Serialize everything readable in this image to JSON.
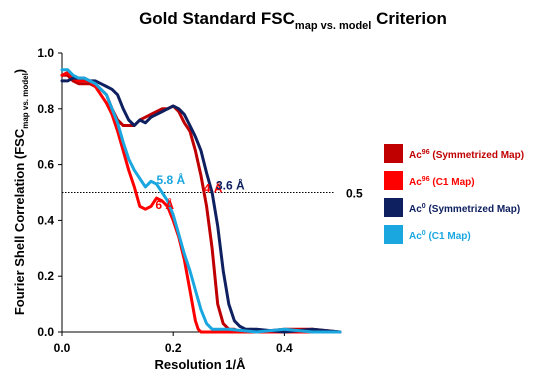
{
  "chart_data": {
    "type": "line",
    "title": {
      "prefix": "Gold Standard FSC",
      "subscript": "map vs. model",
      "suffix": " Criterion"
    },
    "xlabel": "Resolution 1/Å",
    "ylabel": {
      "prefix": "Fourier Shell Correlation (FSC",
      "subscript": "map vs. model",
      "suffix": ")"
    },
    "xlim": [
      0,
      0.5
    ],
    "ylim": [
      0,
      1.0
    ],
    "xticks": [
      "0.0",
      "0.2",
      "0.4"
    ],
    "xtick_values": [
      0.0,
      0.2,
      0.4
    ],
    "yticks": [
      "0.0",
      "0.2",
      "0.4",
      "0.6",
      "0.8",
      "1.0"
    ],
    "ytick_values": [
      0.0,
      0.2,
      0.4,
      0.6,
      0.8,
      1.0
    ],
    "threshold": {
      "value": 0.5,
      "label": "0.5"
    },
    "series": [
      {
        "name": "Ac<sup>96</sup> (Symmetrized Map)",
        "legend": {
          "base": "Ac",
          "sup": "96",
          "rest": " (Symmetrized Map)"
        },
        "color": "#c00000",
        "x": [
          0.0,
          0.01,
          0.02,
          0.03,
          0.04,
          0.05,
          0.06,
          0.07,
          0.08,
          0.09,
          0.1,
          0.11,
          0.12,
          0.13,
          0.14,
          0.15,
          0.16,
          0.17,
          0.18,
          0.19,
          0.2,
          0.21,
          0.22,
          0.23,
          0.24,
          0.25,
          0.26,
          0.27,
          0.28,
          0.29,
          0.3,
          0.31,
          0.32,
          0.33,
          0.34,
          0.35,
          0.4,
          0.45,
          0.5
        ],
        "y": [
          0.92,
          0.92,
          0.9,
          0.89,
          0.89,
          0.89,
          0.88,
          0.87,
          0.85,
          0.8,
          0.76,
          0.74,
          0.74,
          0.74,
          0.76,
          0.77,
          0.78,
          0.79,
          0.8,
          0.8,
          0.81,
          0.79,
          0.75,
          0.72,
          0.65,
          0.56,
          0.45,
          0.3,
          0.1,
          0.03,
          0.01,
          0.01,
          0.0,
          0.0,
          0.01,
          0.0,
          0.01,
          0.01,
          0.0
        ]
      },
      {
        "name": "Ac<sup>96</sup> (C1 Map)",
        "legend": {
          "base": "Ac",
          "sup": "96",
          "rest": " (C1 Map)"
        },
        "color": "#ff0000",
        "x": [
          0.0,
          0.01,
          0.02,
          0.03,
          0.04,
          0.05,
          0.06,
          0.07,
          0.08,
          0.09,
          0.1,
          0.11,
          0.12,
          0.13,
          0.14,
          0.15,
          0.16,
          0.17,
          0.18,
          0.19,
          0.2,
          0.21,
          0.22,
          0.23,
          0.24,
          0.245,
          0.25,
          0.3,
          0.35,
          0.4,
          0.45,
          0.5
        ],
        "y": [
          0.92,
          0.93,
          0.91,
          0.9,
          0.9,
          0.9,
          0.88,
          0.85,
          0.82,
          0.78,
          0.72,
          0.65,
          0.58,
          0.52,
          0.45,
          0.44,
          0.45,
          0.48,
          0.47,
          0.45,
          0.4,
          0.34,
          0.26,
          0.15,
          0.04,
          0.01,
          0.0,
          0.0,
          0.0,
          0.0,
          0.0,
          0.0
        ]
      },
      {
        "name": "Ac<sup>0</sup> (Symmetrized Map)",
        "legend": {
          "base": "Ac",
          "sup": "0",
          "rest": " (Symmetrized Map)"
        },
        "color": "#0f2060",
        "x": [
          0.0,
          0.01,
          0.02,
          0.03,
          0.04,
          0.05,
          0.06,
          0.07,
          0.08,
          0.09,
          0.1,
          0.11,
          0.12,
          0.13,
          0.14,
          0.15,
          0.16,
          0.17,
          0.18,
          0.19,
          0.2,
          0.21,
          0.22,
          0.23,
          0.24,
          0.25,
          0.26,
          0.27,
          0.28,
          0.29,
          0.3,
          0.31,
          0.32,
          0.33,
          0.34,
          0.35,
          0.4,
          0.45,
          0.5
        ],
        "y": [
          0.9,
          0.9,
          0.91,
          0.91,
          0.91,
          0.9,
          0.9,
          0.89,
          0.88,
          0.87,
          0.85,
          0.8,
          0.76,
          0.74,
          0.76,
          0.75,
          0.77,
          0.78,
          0.79,
          0.8,
          0.81,
          0.8,
          0.78,
          0.74,
          0.7,
          0.65,
          0.57,
          0.5,
          0.38,
          0.22,
          0.1,
          0.04,
          0.02,
          0.01,
          0.01,
          0.01,
          0.0,
          0.01,
          0.0
        ]
      },
      {
        "name": "Ac<sup>0</sup> (C1 Map)",
        "legend": {
          "base": "Ac",
          "sup": "0",
          "rest": " (C1 Map)"
        },
        "color": "#1aa7e0",
        "x": [
          0.0,
          0.01,
          0.02,
          0.03,
          0.04,
          0.05,
          0.06,
          0.07,
          0.08,
          0.09,
          0.1,
          0.11,
          0.12,
          0.13,
          0.14,
          0.15,
          0.16,
          0.17,
          0.18,
          0.19,
          0.2,
          0.21,
          0.22,
          0.23,
          0.24,
          0.25,
          0.26,
          0.27,
          0.3,
          0.35,
          0.4,
          0.45,
          0.5
        ],
        "y": [
          0.94,
          0.94,
          0.92,
          0.91,
          0.91,
          0.9,
          0.89,
          0.87,
          0.85,
          0.8,
          0.75,
          0.68,
          0.62,
          0.58,
          0.55,
          0.52,
          0.54,
          0.53,
          0.5,
          0.47,
          0.42,
          0.35,
          0.28,
          0.22,
          0.15,
          0.08,
          0.03,
          0.01,
          0.01,
          0.0,
          0.01,
          0.0,
          0.0
        ]
      }
    ],
    "annotations": [
      {
        "text": "5.8 Å",
        "color": "#1aa7e0",
        "x": 0.17,
        "y": 0.53
      },
      {
        "text": "6 Å",
        "color": "#ff0000",
        "x": 0.168,
        "y": 0.44
      },
      {
        "text": "4 Å",
        "color": "#ff0000",
        "x": 0.255,
        "y": 0.5
      },
      {
        "text": "3.6 Å",
        "color": "#0f2060",
        "x": 0.277,
        "y": 0.51
      }
    ],
    "grid": false,
    "legend_position": "right"
  }
}
